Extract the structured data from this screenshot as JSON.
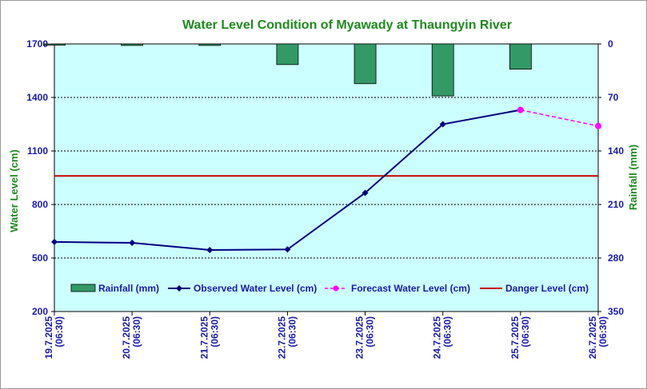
{
  "chart_data": {
    "type": "line",
    "title": "Water Level Condition of  Myawady at Thaungyin River",
    "ylabel": "Water Level (cm)",
    "y2label": "Rainfall (mm)",
    "ylim": [
      200,
      1700
    ],
    "yticks": [
      200,
      500,
      800,
      1100,
      1400,
      1700
    ],
    "y2lim": [
      0,
      350
    ],
    "y2ticks": [
      0,
      70,
      140,
      210,
      280,
      350
    ],
    "y2_inverted": true,
    "categories": [
      [
        "19.7.2025",
        "(06:30)"
      ],
      [
        "20.7.2025",
        "(06:30)"
      ],
      [
        "21.7.2025",
        "(06:30)"
      ],
      [
        "22.7.2025",
        "(06:30)"
      ],
      [
        "23.7.2025",
        "(06:30)"
      ],
      [
        "24.7.2025",
        "(06:30)"
      ],
      [
        "25.7.2025",
        "(06:30)"
      ],
      [
        "26.7.2025",
        "(06:30)"
      ]
    ],
    "grid": true,
    "legend_position": "bottom",
    "series": [
      {
        "name": "Rainfall (mm)",
        "kind": "bar",
        "axis": "right",
        "color": "#339966",
        "values": [
          1,
          2,
          2,
          27,
          52,
          68,
          33,
          null
        ]
      },
      {
        "name": "Observed Water Level (cm)",
        "kind": "line",
        "axis": "left",
        "color": "#000080",
        "values": [
          590,
          585,
          545,
          548,
          865,
          1250,
          1330,
          null
        ]
      },
      {
        "name": "Forecast Water Level (cm)",
        "kind": "dashed-line",
        "axis": "left",
        "color": "#ff00ff",
        "values": [
          null,
          null,
          null,
          null,
          null,
          null,
          1330,
          1240
        ]
      },
      {
        "name": "Danger Level (cm)",
        "kind": "hline",
        "axis": "left",
        "color": "#cc0000",
        "value": 960
      }
    ],
    "colors": {
      "plot_bg": "#ccffff",
      "title": "#1f8a1f",
      "axis_text": "#1a1aa8"
    }
  }
}
